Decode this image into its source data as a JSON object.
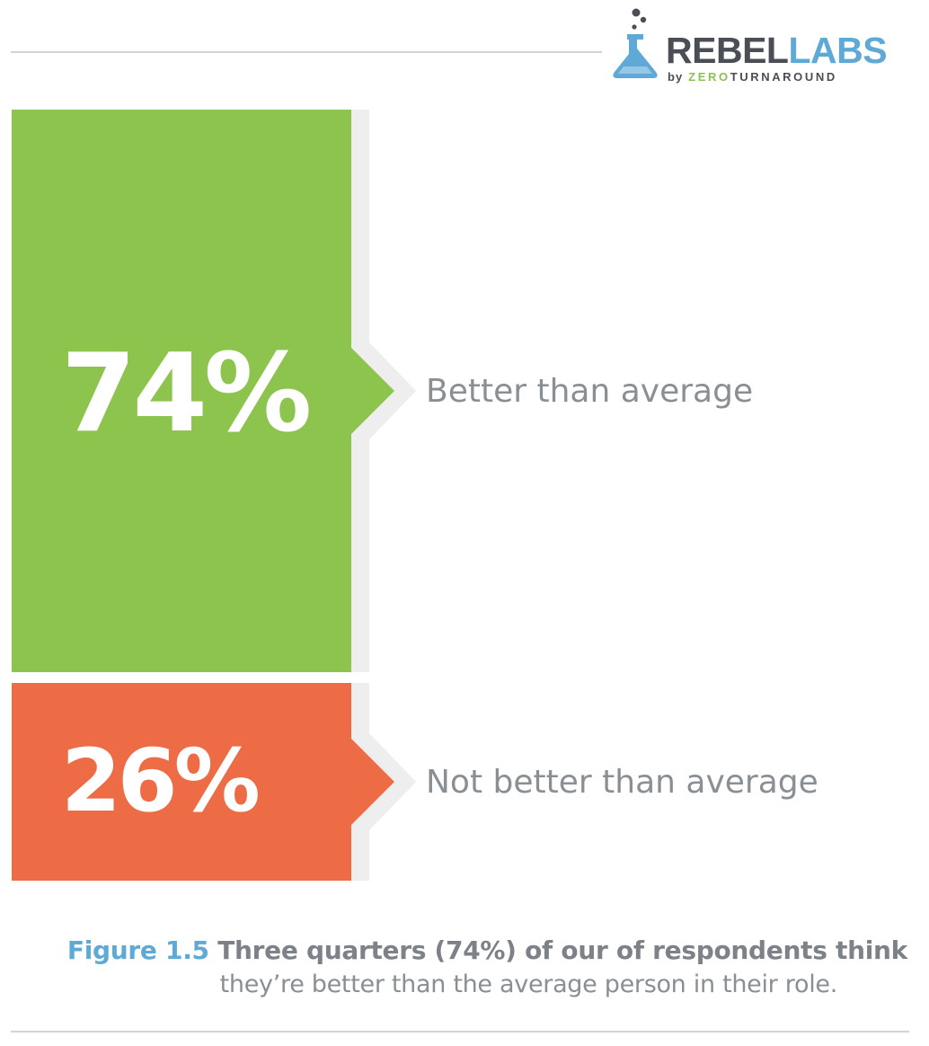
{
  "logo": {
    "brand_a": "REBEL",
    "brand_b": "LABS",
    "by": "by",
    "sub_a": "ZERO",
    "sub_b": "TURNAROUND",
    "colors": {
      "dark": "#4a4f55",
      "blue": "#5ea9d6",
      "green": "#8cc152"
    }
  },
  "chart_data": {
    "type": "bar",
    "orientation": "stacked-vertical",
    "categories": [
      "Better than average",
      "Not better than average"
    ],
    "values": [
      74,
      26
    ],
    "value_labels": [
      "74%",
      "26%"
    ],
    "colors": [
      "#8dc44d",
      "#ee6c45"
    ],
    "shadow_color": "#eeeeee"
  },
  "caption": {
    "label": "Figure 1.5",
    "title": "Three quarters (74%) of our of respondents think",
    "subtitle": "they’re better than the average person in their role."
  }
}
